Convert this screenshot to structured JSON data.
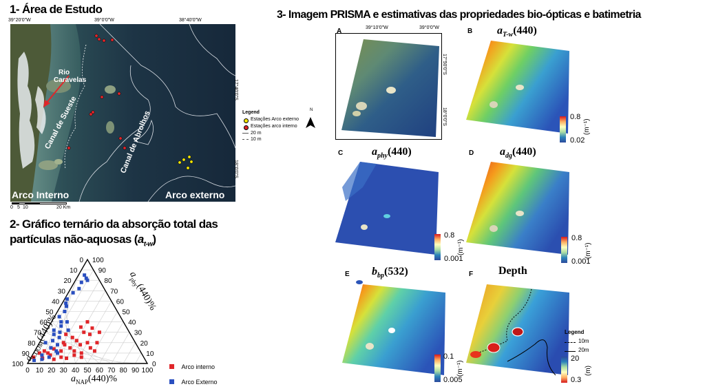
{
  "section1": {
    "title": "1- Área de Estudo",
    "coords_top": [
      "39°20'0\"W",
      "39°0'0\"W",
      "38°40'0\"W"
    ],
    "coords_right": [
      "17°40'0\"S",
      "18°0'0\"S"
    ],
    "map_labels": {
      "rio": "Rio",
      "caravelas": "Caravelas",
      "canal_sueste": "Canal de Sueste",
      "canal_abrolhos": "Canal de Abrolhos",
      "arco_interno": "Arco Interno",
      "arco_externo": "Arco externo"
    },
    "north": "N",
    "legend": {
      "title": "Legend",
      "items": [
        "Estações Arco externo",
        "Estações arco interno",
        "20 m",
        "10 m"
      ]
    },
    "scale": [
      "0",
      "5",
      "10",
      "20 Km"
    ]
  },
  "section2": {
    "title_line1": "2- Gráfico ternário da absorção total das",
    "title_line2_prefix": "partículas não-aquosas (",
    "title_line2_var": "a",
    "title_line2_sub": "t-w",
    "title_line2_suffix": ")",
    "ticks": [
      "0",
      "10",
      "20",
      "30",
      "40",
      "50",
      "60",
      "70",
      "80",
      "90",
      "100"
    ],
    "axis_left_prefix": "a",
    "axis_left_sub": "CDOM",
    "axis_left_suffix": "(440)%",
    "axis_right_prefix": "a",
    "axis_right_sub": "phy",
    "axis_right_suffix": "(440)%",
    "axis_bottom_prefix": "a",
    "axis_bottom_sub": "NAP",
    "axis_bottom_suffix": "(440)%",
    "legend": [
      {
        "label": "Arco interno",
        "color": "#e0262a"
      },
      {
        "label": "Arco Externo",
        "color": "#2a4fc0"
      }
    ]
  },
  "section3": {
    "title": "3- Imagem PRISMA e estimativas das propriedades bio-ópticas e batimetria",
    "panel_a": {
      "letter": "A",
      "coords_top": [
        "39°10'0\"W",
        "39°0'0\"W"
      ],
      "coords_right": [
        "17°50'0\"S",
        "18°0'0\"S"
      ]
    },
    "panel_b": {
      "letter": "B",
      "var": "a",
      "sub": "T-w",
      "arg": "(440)",
      "cb_max": "0.8",
      "cb_min": "0.02",
      "unit": "(m⁻¹)"
    },
    "panel_c": {
      "letter": "C",
      "var": "a",
      "sub": "phy",
      "arg": "(440)",
      "cb_max": "0.8",
      "cb_min": "0.001",
      "unit": "(m⁻¹)"
    },
    "panel_d": {
      "letter": "D",
      "var": "a",
      "sub": "dg",
      "arg": "(440)",
      "cb_max": "0.8",
      "cb_min": "0.001",
      "unit": "(m⁻¹)"
    },
    "panel_e": {
      "letter": "E",
      "var": "b",
      "sub": "bp",
      "arg": "(532)",
      "cb_max": "0.1",
      "cb_min": "0.005",
      "unit": "(m⁻¹)"
    },
    "panel_f": {
      "letter": "F",
      "title": "Depth",
      "cb_max": "20",
      "cb_min": "0.3",
      "unit": "(m)",
      "legend": {
        "title": "Legend",
        "items": [
          "10m",
          "20m"
        ]
      }
    }
  },
  "colors": {
    "red_station": "#e0262a",
    "yellow_station": "#f5e600",
    "blue_marker": "#2a4fc0",
    "red_marker": "#e0262a"
  }
}
